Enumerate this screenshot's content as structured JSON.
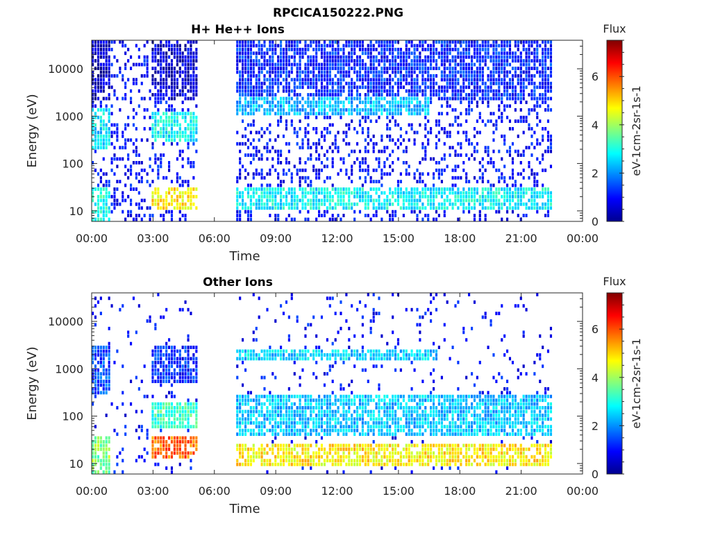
{
  "figure": {
    "filename_title": "RPCICA150222.PNG"
  },
  "colormap": {
    "name": "jet",
    "stops": [
      "#00008f",
      "#0000ff",
      "#00ffff",
      "#ffff00",
      "#ff0000",
      "#800000"
    ]
  },
  "chart_data": [
    {
      "type": "heatmap",
      "title": "H+ He++ Ions",
      "xlabel": "Time",
      "ylabel": "Energy (eV)",
      "x_ticks": [
        "00:00",
        "03:00",
        "06:00",
        "09:00",
        "12:00",
        "15:00",
        "18:00",
        "21:00",
        "00:00"
      ],
      "x_range_hours": [
        0,
        24
      ],
      "y_scale": "log",
      "y_ticks": [
        10,
        100,
        1000,
        10000
      ],
      "y_tick_labels": [
        "10",
        "100",
        "1000",
        "10000"
      ],
      "y_range_eV": [
        6,
        40000
      ],
      "colorbar": {
        "title": "Flux",
        "label": "eV-1cm-2sr-1s-1",
        "range": [
          0,
          7.5
        ],
        "ticks": [
          0,
          2,
          4,
          6
        ],
        "tick_labels": [
          "0",
          "2",
          "4",
          "6"
        ]
      },
      "data_gaps_hours": [
        [
          5.2,
          7.1
        ],
        [
          22.5,
          24
        ]
      ],
      "features": [
        {
          "time_hours": [
            0,
            1.0
          ],
          "energy_eV": [
            6,
            30
          ],
          "flux": 3.0
        },
        {
          "time_hours": [
            0,
            1.0
          ],
          "energy_eV": [
            200,
            1500
          ],
          "flux": 2.6
        },
        {
          "time_hours": [
            0,
            1.0
          ],
          "energy_eV": [
            2000,
            40000
          ],
          "flux": 0.5
        },
        {
          "time_hours": [
            2.9,
            5.2
          ],
          "energy_eV": [
            10,
            30
          ],
          "flux": 4.8
        },
        {
          "time_hours": [
            2.9,
            5.2
          ],
          "energy_eV": [
            300,
            1200
          ],
          "flux": 2.8
        },
        {
          "time_hours": [
            2.9,
            5.2
          ],
          "energy_eV": [
            2000,
            40000
          ],
          "flux": 0.6
        },
        {
          "time_hours": [
            7.1,
            22.5
          ],
          "energy_eV": [
            10,
            30
          ],
          "flux": 2.8
        },
        {
          "time_hours": [
            7.1,
            16.5
          ],
          "energy_eV": [
            1000,
            2500
          ],
          "flux": 2.3
        },
        {
          "time_hours": [
            7.1,
            22.5
          ],
          "energy_eV": [
            2000,
            40000
          ],
          "flux": 1.2
        }
      ]
    },
    {
      "type": "heatmap",
      "title": "Other Ions",
      "xlabel": "Time",
      "ylabel": "Energy (eV)",
      "x_ticks": [
        "00:00",
        "03:00",
        "06:00",
        "09:00",
        "12:00",
        "15:00",
        "18:00",
        "21:00",
        "00:00"
      ],
      "x_range_hours": [
        0,
        24
      ],
      "y_scale": "log",
      "y_ticks": [
        10,
        100,
        1000,
        10000
      ],
      "y_tick_labels": [
        "10",
        "100",
        "1000",
        "10000"
      ],
      "y_range_eV": [
        6,
        40000
      ],
      "colorbar": {
        "title": "Flux",
        "label": "eV-1cm-2sr-1s-1",
        "range": [
          0,
          7.5
        ],
        "ticks": [
          0,
          2,
          4,
          6
        ],
        "tick_labels": [
          "0",
          "2",
          "4",
          "6"
        ]
      },
      "data_gaps_hours": [
        [
          5.2,
          7.1
        ],
        [
          22.5,
          24
        ]
      ],
      "features": [
        {
          "time_hours": [
            0,
            1.0
          ],
          "energy_eV": [
            6,
            40
          ],
          "flux": 3.8
        },
        {
          "time_hours": [
            0,
            1.0
          ],
          "energy_eV": [
            300,
            3000
          ],
          "flux": 1.5
        },
        {
          "time_hours": [
            2.9,
            5.2
          ],
          "energy_eV": [
            12,
            40
          ],
          "flux": 5.8
        },
        {
          "time_hours": [
            2.9,
            5.2
          ],
          "energy_eV": [
            50,
            200
          ],
          "flux": 3.2
        },
        {
          "time_hours": [
            2.9,
            5.2
          ],
          "energy_eV": [
            500,
            3000
          ],
          "flux": 1.2
        },
        {
          "time_hours": [
            7.1,
            22.5
          ],
          "energy_eV": [
            8,
            25
          ],
          "flux": 4.8
        },
        {
          "time_hours": [
            7.1,
            22.5
          ],
          "energy_eV": [
            40,
            300
          ],
          "flux": 2.4
        },
        {
          "time_hours": [
            7.1,
            17.0
          ],
          "energy_eV": [
            1500,
            2500
          ],
          "flux": 2.5
        }
      ]
    }
  ]
}
